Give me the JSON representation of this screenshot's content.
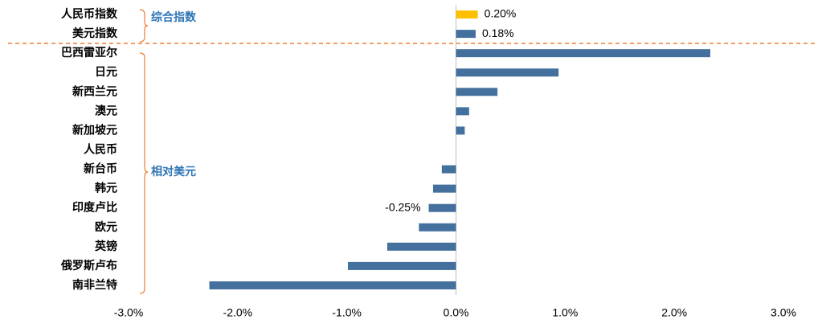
{
  "chart_data": {
    "type": "bar",
    "orientation": "horizontal",
    "categories": [
      "人民币指数",
      "美元指数",
      "巴西雷亚尔",
      "日元",
      "新西兰元",
      "澳元",
      "新加坡元",
      "人民币",
      "新台币",
      "韩元",
      "印度卢比",
      "欧元",
      "英镑",
      "俄罗斯卢布",
      "南非兰特"
    ],
    "values": [
      0.2,
      0.18,
      2.33,
      0.94,
      0.38,
      0.12,
      0.08,
      0,
      -0.13,
      -0.21,
      -0.25,
      -0.34,
      -0.63,
      -0.99,
      -2.26
    ],
    "value_labels": [
      "0.20%",
      "0.18%",
      null,
      null,
      null,
      null,
      null,
      null,
      null,
      null,
      "-0.25%",
      null,
      null,
      null,
      null
    ],
    "colors": [
      "#ffc000",
      "#44709d",
      "#44709d",
      "#44709d",
      "#44709d",
      "#44709d",
      "#44709d",
      "#44709d",
      "#44709d",
      "#44709d",
      "#44709d",
      "#44709d",
      "#44709d",
      "#44709d",
      "#44709d"
    ],
    "xlim": [
      -3,
      3
    ],
    "xticks": [
      {
        "value": -3,
        "label": "-3.0%"
      },
      {
        "value": -2,
        "label": "-2.0%"
      },
      {
        "value": -1,
        "label": "-1.0%"
      },
      {
        "value": 0,
        "label": "0.0%"
      },
      {
        "value": 1,
        "label": "1.0%"
      },
      {
        "value": 2,
        "label": "2.0%"
      },
      {
        "value": 3,
        "label": "3.0%"
      }
    ],
    "annotations": [
      "综合指数",
      "相对美元"
    ],
    "grid": false
  }
}
